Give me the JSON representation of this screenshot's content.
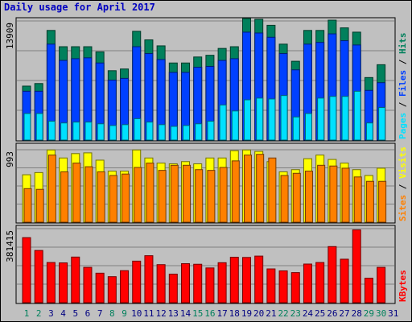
{
  "title": "Daily usage for April 2017",
  "colors": {
    "hits": "#00805c",
    "files": "#0040ff",
    "pages": "#00e0ff",
    "visits": "#ffff00",
    "sites": "#ff8000",
    "kbytes": "#ff0000",
    "weekend_label": "#00805c",
    "weekday_label": "#000080"
  },
  "chart_data": [
    {
      "type": "bar",
      "title": "Daily usage for April 2017",
      "panel": "hits-files-pages",
      "y_tick_label": "13909",
      "legend": [
        "Pages",
        "Files",
        "Hits"
      ],
      "ylim": [
        0,
        13909
      ],
      "categories": [
        "1",
        "2",
        "3",
        "4",
        "5",
        "6",
        "7",
        "8",
        "9",
        "10",
        "11",
        "12",
        "13",
        "14",
        "15",
        "16",
        "17",
        "18",
        "19",
        "20",
        "21",
        "22",
        "23",
        "24",
        "25",
        "26",
        "27",
        "28",
        "29",
        "30",
        "31"
      ],
      "series": [
        {
          "name": "Hits",
          "values": [
            6300,
            6600,
            12800,
            10900,
            10900,
            10900,
            10300,
            8100,
            8300,
            12700,
            11700,
            11000,
            9000,
            9000,
            9700,
            9900,
            10700,
            10900,
            14200,
            14100,
            13400,
            11200,
            9200,
            12800,
            12800,
            14000,
            13100,
            12600,
            7300,
            8800,
            0
          ]
        },
        {
          "name": "Files",
          "values": [
            5700,
            5700,
            11200,
            9300,
            9500,
            9600,
            9000,
            7000,
            7200,
            10900,
            10100,
            9400,
            7900,
            7900,
            8500,
            8600,
            9300,
            9500,
            12600,
            12500,
            12000,
            10100,
            8200,
            11200,
            11400,
            12400,
            11600,
            11100,
            5800,
            6700,
            0
          ]
        },
        {
          "name": "Pages",
          "values": [
            3100,
            3100,
            2200,
            2000,
            2100,
            2100,
            1900,
            1700,
            1800,
            2500,
            2100,
            1800,
            1600,
            1700,
            1900,
            2200,
            4100,
            3400,
            4700,
            4900,
            4800,
            5200,
            2700,
            3100,
            4900,
            5100,
            5100,
            5700,
            2000,
            3800,
            0
          ]
        }
      ]
    },
    {
      "type": "bar",
      "panel": "visits-sites",
      "y_tick_label": "993",
      "legend": [
        "Sites",
        "Visits"
      ],
      "ylim": [
        0,
        993
      ],
      "categories": [
        "1",
        "2",
        "3",
        "4",
        "5",
        "6",
        "7",
        "8",
        "9",
        "10",
        "11",
        "12",
        "13",
        "14",
        "15",
        "16",
        "17",
        "18",
        "19",
        "20",
        "21",
        "22",
        "23",
        "24",
        "25",
        "26",
        "27",
        "28",
        "29",
        "30",
        "31"
      ],
      "series": [
        {
          "name": "Visits",
          "values": [
            650,
            680,
            990,
            880,
            940,
            950,
            850,
            700,
            700,
            990,
            880,
            810,
            800,
            830,
            800,
            880,
            880,
            980,
            990,
            970,
            830,
            690,
            720,
            870,
            920,
            860,
            810,
            720,
            640,
            740,
            0
          ]
        },
        {
          "name": "Sites",
          "values": [
            460,
            450,
            920,
            690,
            810,
            760,
            690,
            640,
            660,
            750,
            810,
            710,
            780,
            780,
            720,
            710,
            750,
            840,
            920,
            930,
            880,
            640,
            670,
            700,
            780,
            770,
            740,
            620,
            560,
            560,
            0
          ]
        }
      ]
    },
    {
      "type": "bar",
      "panel": "kbytes",
      "y_tick_label": "381415",
      "legend": [
        "KBytes"
      ],
      "ylim": [
        0,
        381415
      ],
      "categories": [
        "1",
        "2",
        "3",
        "4",
        "5",
        "6",
        "7",
        "8",
        "9",
        "10",
        "11",
        "12",
        "13",
        "14",
        "15",
        "16",
        "17",
        "18",
        "19",
        "20",
        "21",
        "22",
        "23",
        "24",
        "25",
        "26",
        "27",
        "28",
        "29",
        "30",
        "31"
      ],
      "series": [
        {
          "name": "KBytes",
          "values": [
            335000,
            269000,
            207000,
            205000,
            235000,
            182000,
            152000,
            134000,
            165000,
            214000,
            242000,
            196000,
            147000,
            201000,
            198000,
            179000,
            206000,
            234000,
            233000,
            240000,
            174000,
            164000,
            155000,
            199000,
            207000,
            289000,
            224000,
            375000,
            126000,
            182000,
            0
          ]
        }
      ]
    }
  ],
  "x_labels": {
    "days": [
      "1",
      "2",
      "3",
      "4",
      "5",
      "6",
      "7",
      "8",
      "9",
      "10",
      "11",
      "12",
      "13",
      "14",
      "15",
      "16",
      "17",
      "18",
      "19",
      "20",
      "21",
      "22",
      "23",
      "24",
      "25",
      "26",
      "27",
      "28",
      "29",
      "30",
      "31"
    ],
    "weekend": [
      "1",
      "2",
      "8",
      "9",
      "15",
      "16",
      "22",
      "23",
      "29",
      "30"
    ]
  }
}
